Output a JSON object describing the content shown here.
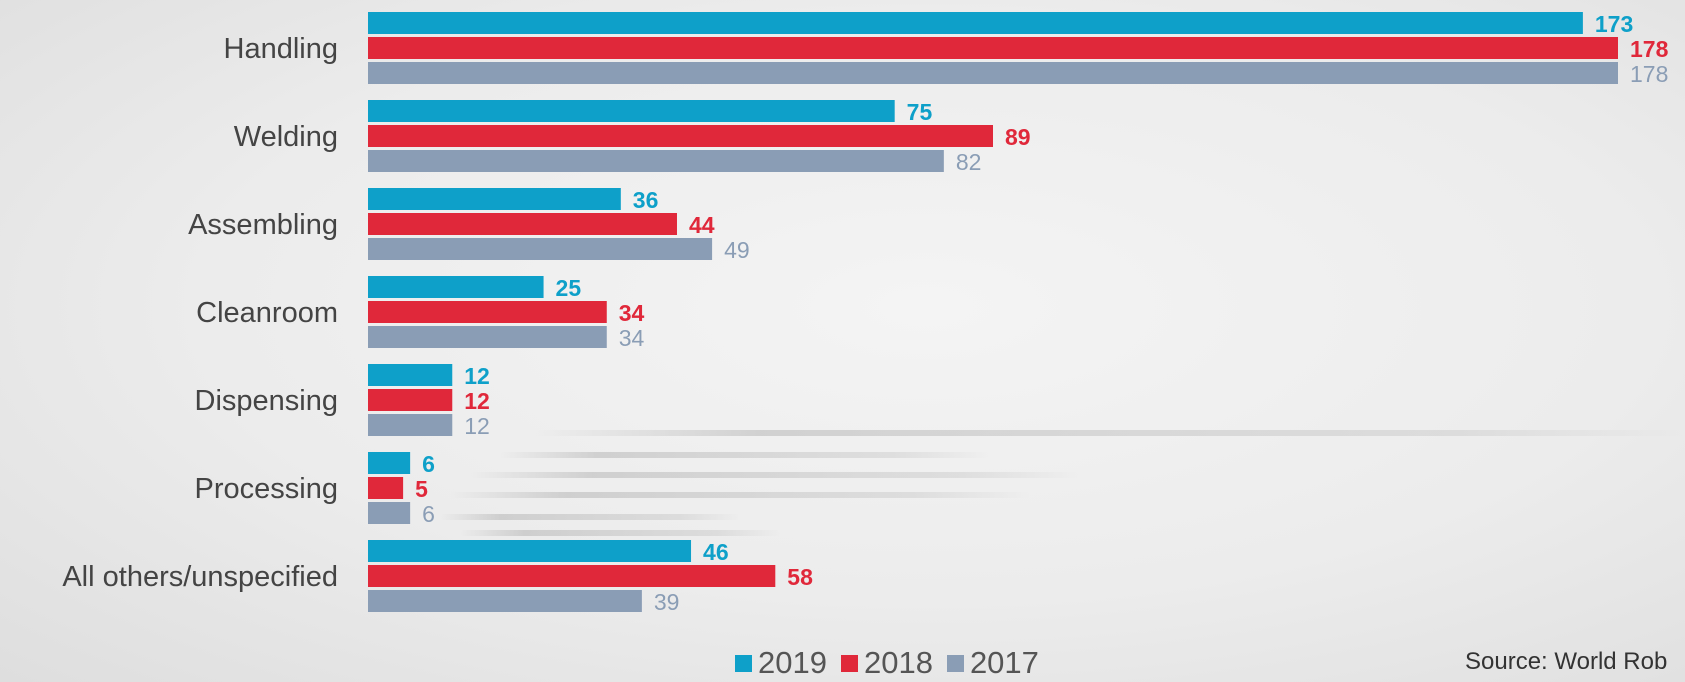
{
  "chart_data": {
    "type": "bar",
    "orientation": "horizontal",
    "categories": [
      "Handling",
      "Welding",
      "Assembling",
      "Cleanroom",
      "Dispensing",
      "Processing",
      "All others/unspecified"
    ],
    "series": [
      {
        "name": "2019",
        "values": [
          173,
          75,
          36,
          25,
          12,
          6,
          46
        ]
      },
      {
        "name": "2018",
        "values": [
          178,
          89,
          44,
          34,
          12,
          5,
          58
        ]
      },
      {
        "name": "2017",
        "values": [
          178,
          82,
          49,
          34,
          12,
          6,
          39
        ]
      }
    ],
    "xlim": [
      0,
      178
    ],
    "legend_position": "bottom",
    "grid": false
  },
  "colors": {
    "2019": "#0ea0c9",
    "2018": "#e0283a",
    "2017": "#8a9db5"
  },
  "legend": {
    "items": [
      {
        "label": "2019",
        "color": "#0ea0c9"
      },
      {
        "label": "2018",
        "color": "#e0283a"
      },
      {
        "label": "2017",
        "color": "#8a9db5"
      }
    ]
  },
  "source": {
    "text": "Source: World Rob"
  }
}
